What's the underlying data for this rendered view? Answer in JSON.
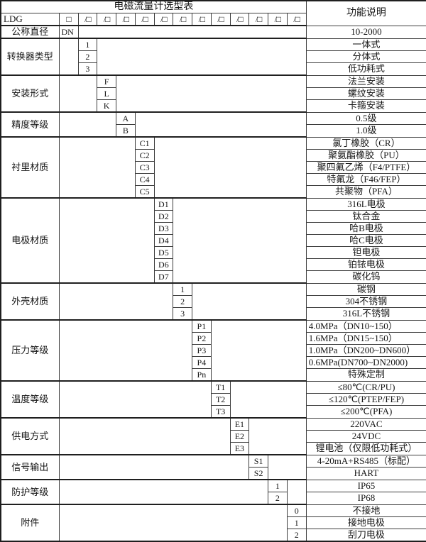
{
  "title": "电磁流量计选型表",
  "right_header": "功能说明",
  "model_row": {
    "prefix": "LDG",
    "boxes": [
      "□",
      "/□",
      "/□",
      "/□",
      "/□",
      "/□",
      "/□",
      "/□",
      "/□",
      "/□",
      "/□",
      "/□",
      "/□"
    ]
  },
  "colors": {
    "grid_line": "#3d3d3d",
    "section_line": "#1f1f1f",
    "text": "#161616",
    "background": "#ffffff"
  },
  "sections": [
    {
      "label": "公称直径",
      "col": 1,
      "code_align": "left",
      "rows": [
        {
          "code": "DN",
          "desc": "10-2000"
        }
      ]
    },
    {
      "label": "转换器类型",
      "col": 2,
      "rows": [
        {
          "code": "1",
          "desc": "一体式"
        },
        {
          "code": "2",
          "desc": "分体式"
        },
        {
          "code": "3",
          "desc": "低功耗式"
        }
      ]
    },
    {
      "label": "安装形式",
      "col": 3,
      "rows": [
        {
          "code": "F",
          "desc": "法兰安装"
        },
        {
          "code": "L",
          "desc": "螺纹安装"
        },
        {
          "code": "K",
          "desc": "卡箍安装"
        }
      ]
    },
    {
      "label": "精度等级",
      "col": 4,
      "rows": [
        {
          "code": "A",
          "desc": "0.5级"
        },
        {
          "code": "B",
          "desc": "1.0级"
        }
      ]
    },
    {
      "label": "衬里材质",
      "col": 5,
      "rows": [
        {
          "code": "C1",
          "desc": "氯丁橡胶（CR）"
        },
        {
          "code": "C2",
          "desc": "聚氨酯橡胶（PU）"
        },
        {
          "code": "C3",
          "desc": "聚四氟乙烯（F4/PTFE）"
        },
        {
          "code": "C4",
          "desc": "特氟龙（F46/FEP）"
        },
        {
          "code": "C5",
          "desc": "共聚物（PFA）"
        }
      ]
    },
    {
      "label": "电极材质",
      "col": 6,
      "rows": [
        {
          "code": "D1",
          "desc": "316L电极"
        },
        {
          "code": "D2",
          "desc": "钛合金"
        },
        {
          "code": "D3",
          "desc": "哈B电极"
        },
        {
          "code": "D4",
          "desc": "哈C电极"
        },
        {
          "code": "D5",
          "desc": "钽电极"
        },
        {
          "code": "D6",
          "desc": "铂铱电极"
        },
        {
          "code": "D7",
          "desc": "碳化钨"
        }
      ]
    },
    {
      "label": "外壳材质",
      "col": 7,
      "rows": [
        {
          "code": "1",
          "desc": "碳钢"
        },
        {
          "code": "2",
          "desc": "304不锈钢"
        },
        {
          "code": "3",
          "desc": "316L不锈钢"
        }
      ]
    },
    {
      "label": "压力等级",
      "col": 8,
      "rows": [
        {
          "code": "P1",
          "desc": "4.0MPa（DN10~150）",
          "align": "left"
        },
        {
          "code": "P2",
          "desc": "1.6MPa（DN15~150）",
          "align": "left"
        },
        {
          "code": "P3",
          "desc": "1.0MPa（DN200~DN600）",
          "align": "left"
        },
        {
          "code": "P4",
          "desc": "0.6MPa(DN700~DN2000)",
          "align": "left"
        },
        {
          "code": "Pn",
          "desc": "特殊定制"
        }
      ]
    },
    {
      "label": "温度等级",
      "col": 9,
      "rows": [
        {
          "code": "T1",
          "desc": "≤80℃(CR/PU)"
        },
        {
          "code": "T2",
          "desc": "≤120℃(PTEP/FEP)"
        },
        {
          "code": "T3",
          "desc": "≤200℃(PFA)"
        }
      ]
    },
    {
      "label": "供电方式",
      "col": 10,
      "rows": [
        {
          "code": "E1",
          "desc": "220VAC"
        },
        {
          "code": "E2",
          "desc": "24VDC"
        },
        {
          "code": "E3",
          "desc": "锂电池（仅限低功耗式）"
        }
      ]
    },
    {
      "label": "信号输出",
      "col": 11,
      "rows": [
        {
          "code": "S1",
          "desc": "4-20mA+RS485（标配）"
        },
        {
          "code": "S2",
          "desc": "HART"
        }
      ]
    },
    {
      "label": "防护等级",
      "col": 12,
      "rows": [
        {
          "code": "1",
          "desc": "IP65"
        },
        {
          "code": "2",
          "desc": "IP68"
        }
      ]
    },
    {
      "label": "附件",
      "col": 13,
      "rows": [
        {
          "code": "0",
          "desc": "不接地"
        },
        {
          "code": "1",
          "desc": "接地电极"
        },
        {
          "code": "2",
          "desc": "刮刀电极"
        }
      ]
    }
  ]
}
